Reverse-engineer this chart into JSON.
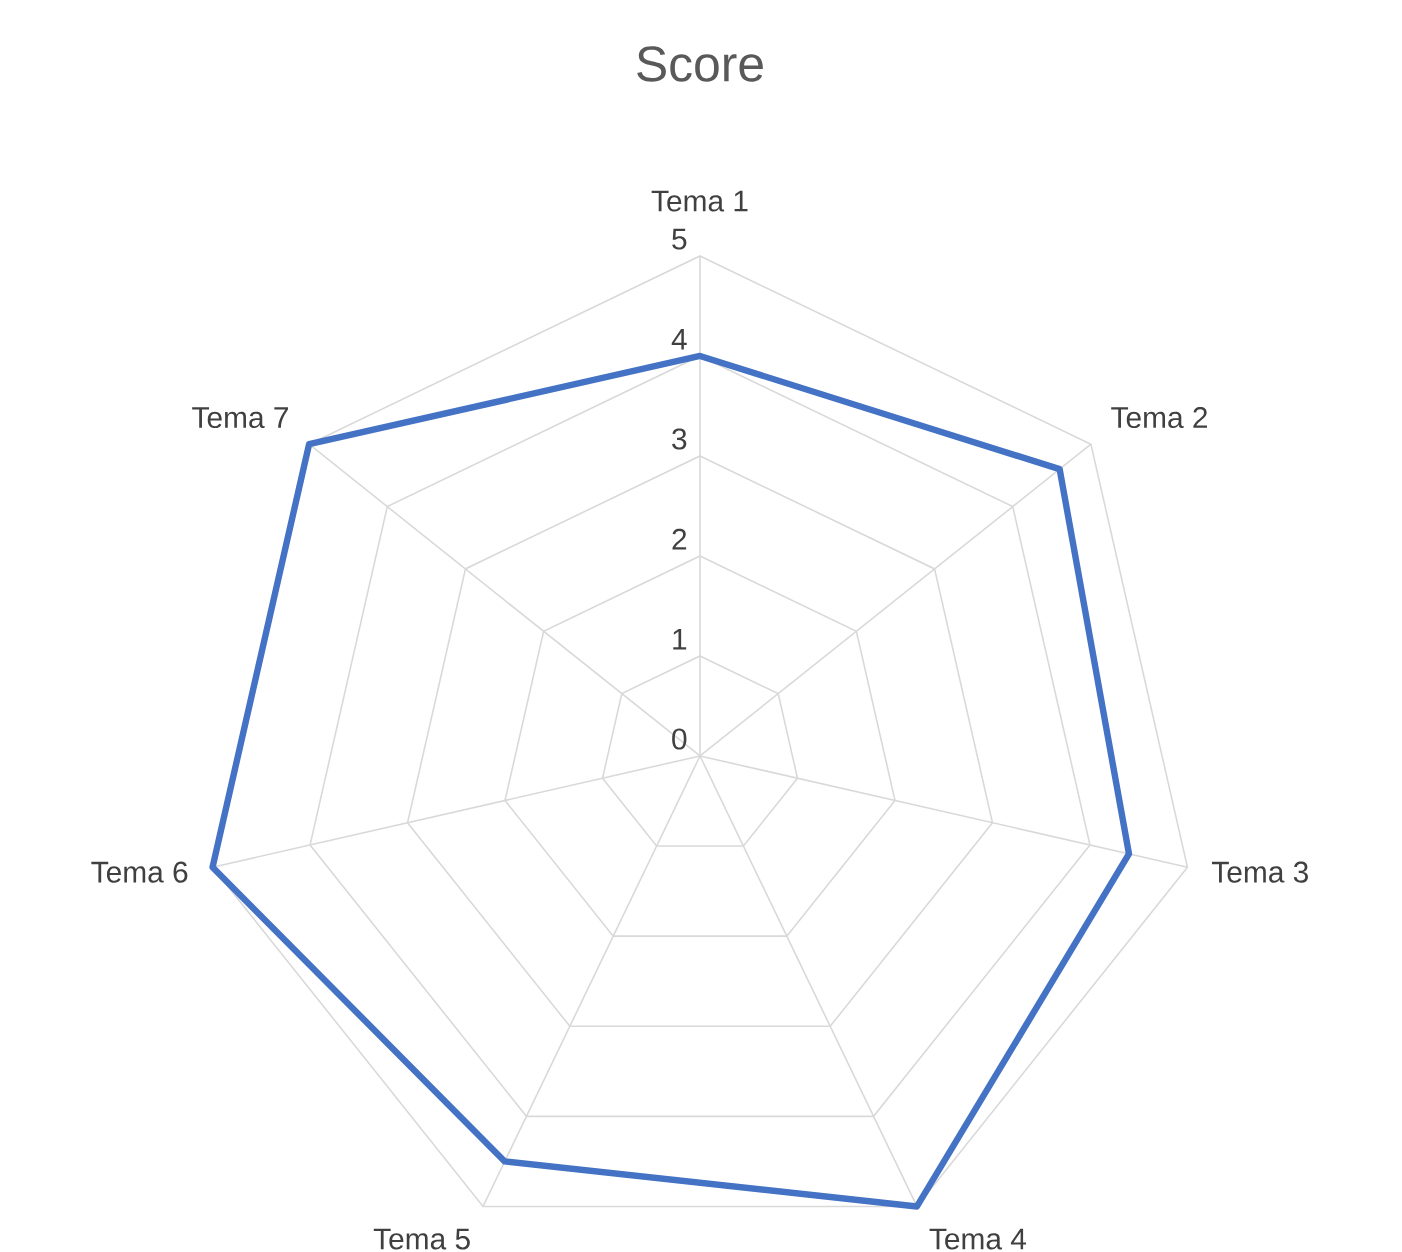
{
  "chart_data": {
    "type": "radar",
    "title": "Score",
    "categories": [
      "Tema 1",
      "Tema 2",
      "Tema 3",
      "Tema 4",
      "Tema 5",
      "Tema 6",
      "Tema 7"
    ],
    "series": [
      {
        "color": "#4472c4",
        "values": [
          4,
          4.6,
          4.4,
          5,
          4.5,
          5,
          5
        ]
      }
    ],
    "ylim": [
      0,
      5
    ],
    "yticks": [
      0,
      1,
      2,
      3,
      4,
      5
    ],
    "grid": true
  }
}
